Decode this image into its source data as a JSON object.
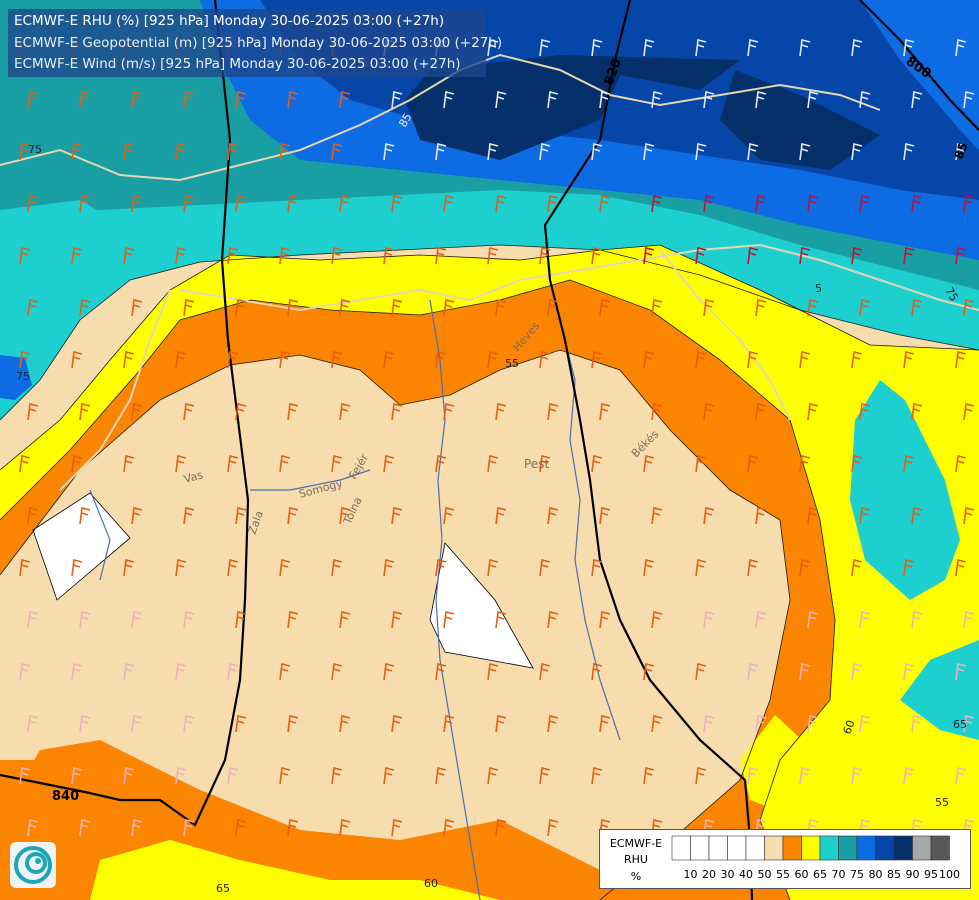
{
  "header": {
    "lines": [
      "ECMWF-E RHU (%) [925 hPa] Monday 30-06-2025 03:00 (+27h)",
      "ECMWF-E Geopotential (m) [925 hPa] Monday 30-06-2025 03:00 (+27h)",
      "ECMWF-E Wind (m/s) [925 hPa] Monday 30-06-2025 03:00 (+27h)"
    ]
  },
  "legend": {
    "title_lines": [
      "ECMWF-E",
      "RHU",
      "%"
    ],
    "bins": [
      {
        "label": "10",
        "color": "#ffffff"
      },
      {
        "label": "20",
        "color": "#ffffff"
      },
      {
        "label": "30",
        "color": "#ffffff"
      },
      {
        "label": "40",
        "color": "#ffffff"
      },
      {
        "label": "50",
        "color": "#ffffff"
      },
      {
        "label": "55",
        "color": "#f7dcae"
      },
      {
        "label": "60",
        "color": "#fb8500"
      },
      {
        "label": "65",
        "color": "#ffff00"
      },
      {
        "label": "70",
        "color": "#1ecfcf"
      },
      {
        "label": "75",
        "color": "#199fa3"
      },
      {
        "label": "80",
        "color": "#0d6be3"
      },
      {
        "label": "85",
        "color": "#0646a8"
      },
      {
        "label": "90",
        "color": "#06306a"
      },
      {
        "label": "95",
        "color": "#a8a8a8"
      },
      {
        "label": "100",
        "color": "#585858"
      }
    ]
  },
  "map_labels": {
    "geopotential": [
      "820",
      "800",
      "840",
      "85"
    ],
    "rhu": [
      "75",
      "75",
      "75",
      "55",
      "55",
      "60",
      "65",
      "65",
      "60",
      "85",
      "5"
    ],
    "regions": [
      "Vas",
      "Somogy",
      "Fejér",
      "Tolna",
      "Zala",
      "Pest",
      "Heves",
      "Békés"
    ]
  },
  "colors": {
    "rhu_55": "#f7dcae",
    "rhu_60": "#fb8500",
    "rhu_65": "#ffff00",
    "rhu_70": "#1ecfcf",
    "rhu_75": "#199fa3",
    "rhu_80": "#0d6be3",
    "rhu_85": "#0646a8",
    "rhu_90": "#06306a",
    "border": "#e6d6b0",
    "river": "#4a6fb3",
    "geopotential_line": "#000000"
  }
}
